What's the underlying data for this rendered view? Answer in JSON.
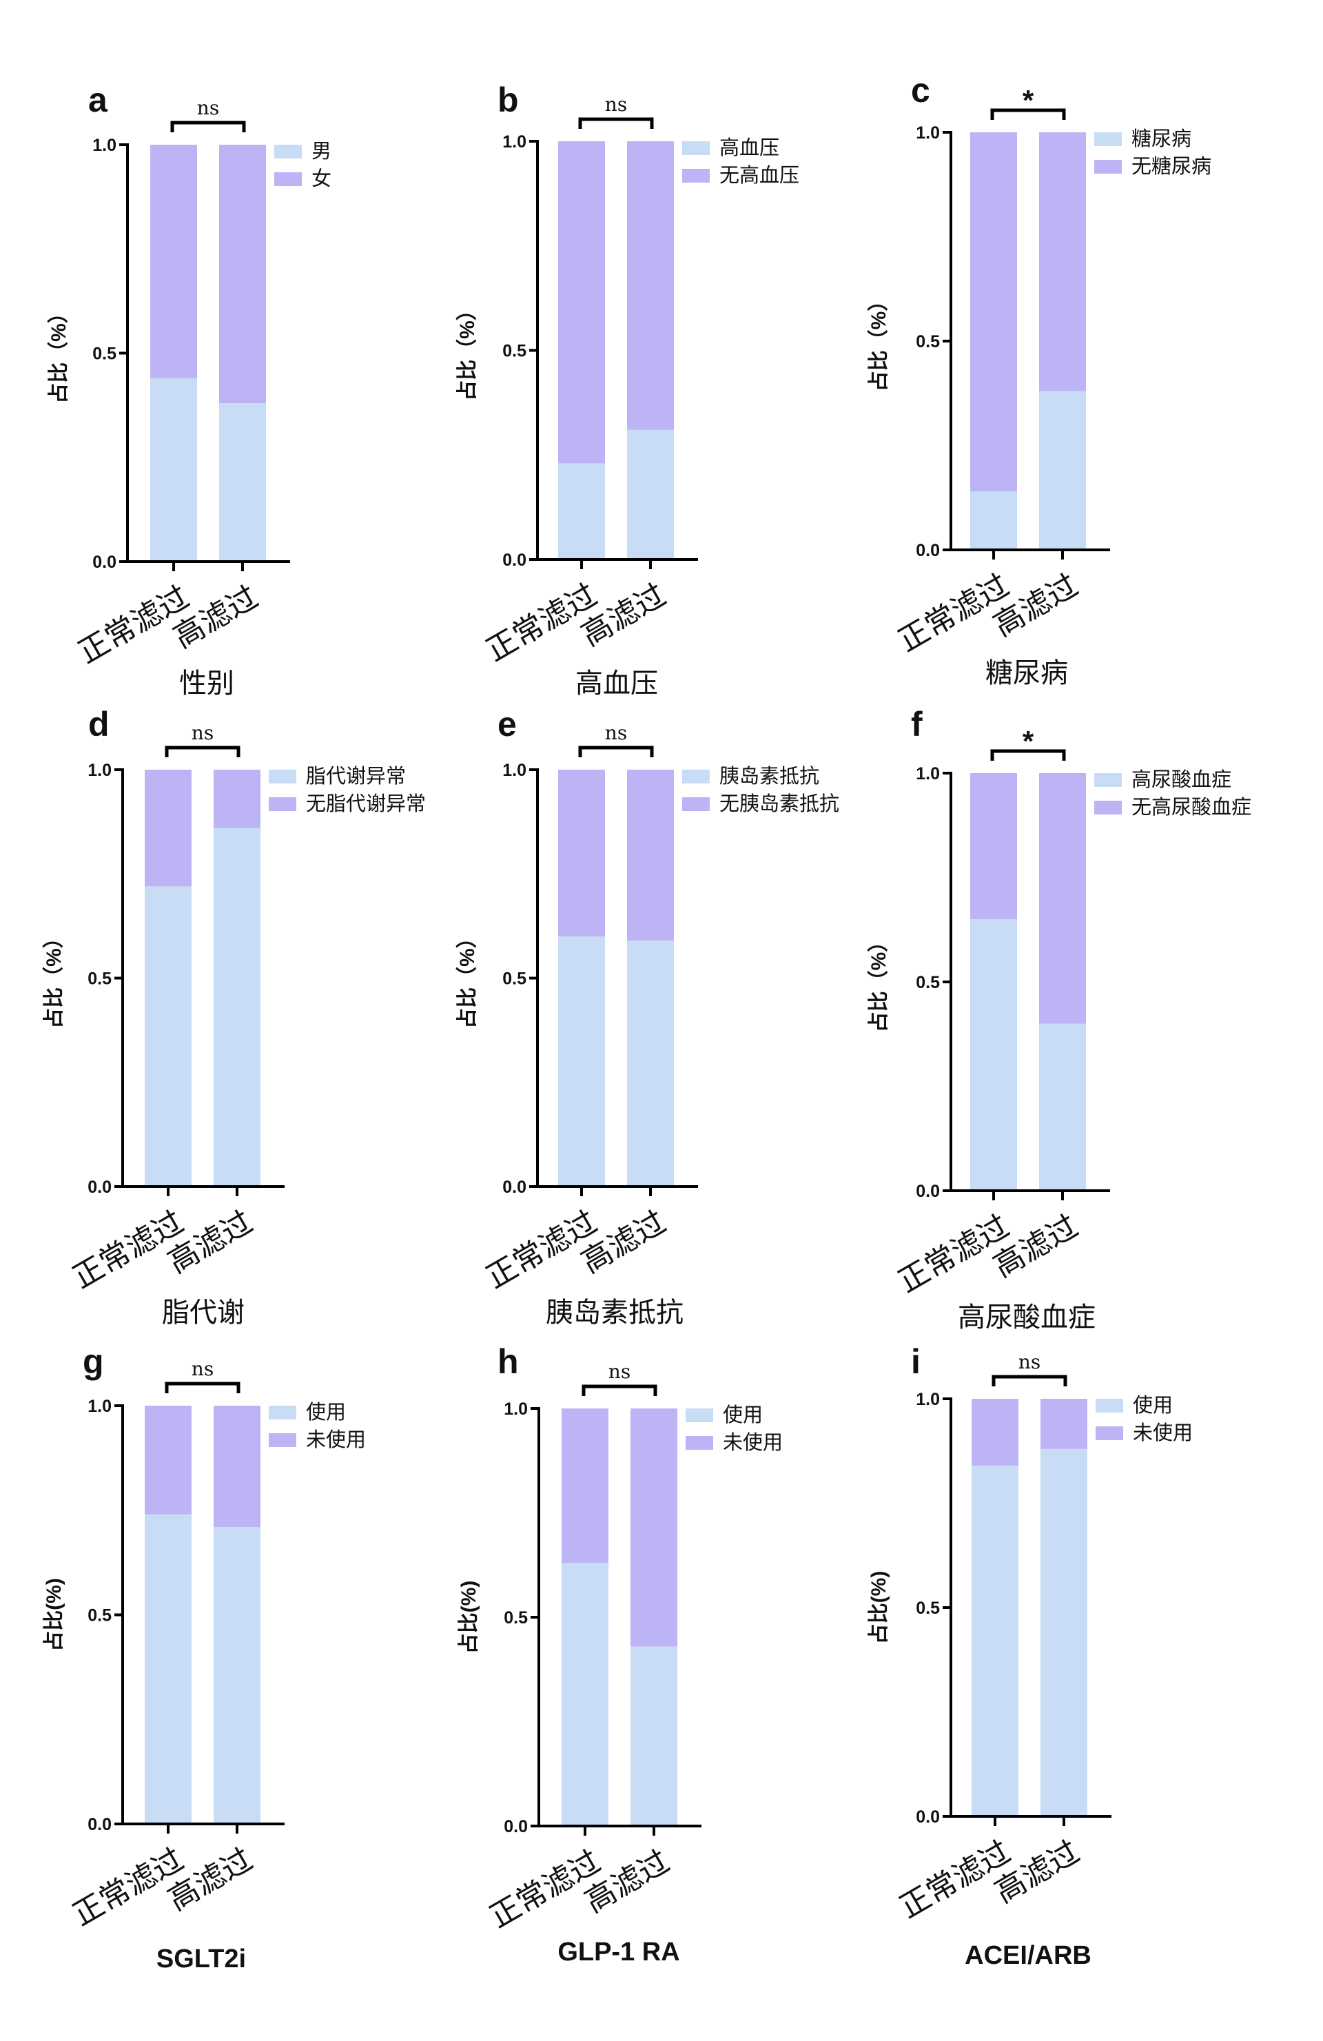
{
  "colors": {
    "segment_bottom": "#c8dcf6",
    "segment_top": "#bcb4f4",
    "axis": "#000000"
  },
  "chart_data": [
    {
      "panel": "a",
      "type": "bar",
      "stacked": true,
      "title": "性别",
      "ylabel": "占比（%）",
      "ylim": [
        0,
        1
      ],
      "yticks": [
        "0.0",
        "0.5",
        "1.0"
      ],
      "categories": [
        "正常滤过",
        "高滤过"
      ],
      "series": [
        {
          "name": "男",
          "values": [
            0.44,
            0.38
          ]
        },
        {
          "name": "女",
          "values": [
            0.56,
            0.62
          ]
        }
      ],
      "significance": "ns",
      "legend": "right-top",
      "grid": false
    },
    {
      "panel": "b",
      "type": "bar",
      "stacked": true,
      "title": "高血压",
      "ylabel": "占比（%）",
      "ylim": [
        0,
        1
      ],
      "yticks": [
        "0.0",
        "0.5",
        "1.0"
      ],
      "categories": [
        "正常滤过",
        "高滤过"
      ],
      "series": [
        {
          "name": "高血压",
          "values": [
            0.23,
            0.31
          ]
        },
        {
          "name": "无高血压",
          "values": [
            0.77,
            0.69
          ]
        }
      ],
      "significance": "ns",
      "legend": "right-top",
      "grid": false
    },
    {
      "panel": "c",
      "type": "bar",
      "stacked": true,
      "title": "糖尿病",
      "ylabel": "占比（%）",
      "ylim": [
        0,
        1
      ],
      "yticks": [
        "0.0",
        "0.5",
        "1.0"
      ],
      "categories": [
        "正常滤过",
        "高滤过"
      ],
      "series": [
        {
          "name": "糖尿病",
          "values": [
            0.14,
            0.38
          ]
        },
        {
          "name": "无糖尿病",
          "values": [
            0.86,
            0.62
          ]
        }
      ],
      "significance": "*",
      "legend": "right-top",
      "grid": false
    },
    {
      "panel": "d",
      "type": "bar",
      "stacked": true,
      "title": "脂代谢",
      "ylabel": "占比（%）",
      "ylim": [
        0,
        1
      ],
      "yticks": [
        "0.0",
        "0.5",
        "1.0"
      ],
      "categories": [
        "正常滤过",
        "高滤过"
      ],
      "series": [
        {
          "name": "脂代谢异常",
          "values": [
            0.72,
            0.86
          ]
        },
        {
          "name": "无脂代谢异常",
          "values": [
            0.28,
            0.14
          ]
        }
      ],
      "significance": "ns",
      "legend": "right-top",
      "grid": false
    },
    {
      "panel": "e",
      "type": "bar",
      "stacked": true,
      "title": "胰岛素抵抗",
      "ylabel": "占比（%）",
      "ylim": [
        0,
        1
      ],
      "yticks": [
        "0.0",
        "0.5",
        "1.0"
      ],
      "categories": [
        "正常滤过",
        "高滤过"
      ],
      "series": [
        {
          "name": "胰岛素抵抗",
          "values": [
            0.6,
            0.59
          ]
        },
        {
          "name": "无胰岛素抵抗",
          "values": [
            0.4,
            0.41
          ]
        }
      ],
      "significance": "ns",
      "legend": "right-top",
      "grid": false
    },
    {
      "panel": "f",
      "type": "bar",
      "stacked": true,
      "title": "高尿酸血症",
      "ylabel": "占比（%）",
      "ylim": [
        0,
        1
      ],
      "yticks": [
        "0.0",
        "0.5",
        "1.0"
      ],
      "categories": [
        "正常滤过",
        "高滤过"
      ],
      "series": [
        {
          "name": "高尿酸血症",
          "values": [
            0.65,
            0.4
          ]
        },
        {
          "name": "无高尿酸血症",
          "values": [
            0.35,
            0.6
          ]
        }
      ],
      "significance": "*",
      "legend": "right-top",
      "grid": false
    },
    {
      "panel": "g",
      "type": "bar",
      "stacked": true,
      "title": "SGLT2i",
      "ylabel": "占比(%)",
      "ylim": [
        0,
        1
      ],
      "yticks": [
        "0.0",
        "0.5",
        "1.0"
      ],
      "categories": [
        "正常滤过",
        "高滤过"
      ],
      "series": [
        {
          "name": "使用",
          "values": [
            0.74,
            0.71
          ]
        },
        {
          "name": "未使用",
          "values": [
            0.26,
            0.29
          ]
        }
      ],
      "significance": "ns",
      "legend": "right-top",
      "grid": false
    },
    {
      "panel": "h",
      "type": "bar",
      "stacked": true,
      "title": "GLP-1 RA",
      "ylabel": "占比(%)",
      "ylim": [
        0,
        1
      ],
      "yticks": [
        "0.0",
        "0.5",
        "1.0"
      ],
      "categories": [
        "正常滤过",
        "高滤过"
      ],
      "series": [
        {
          "name": "使用",
          "values": [
            0.63,
            0.43
          ]
        },
        {
          "name": "未使用",
          "values": [
            0.37,
            0.57
          ]
        }
      ],
      "significance": "ns",
      "legend": "right-top",
      "grid": false
    },
    {
      "panel": "i",
      "type": "bar",
      "stacked": true,
      "title": "ACEI/ARB",
      "ylabel": "占比(%)",
      "ylim": [
        0,
        1
      ],
      "yticks": [
        "0.0",
        "0.5",
        "1.0"
      ],
      "categories": [
        "正常滤过",
        "高滤过"
      ],
      "series": [
        {
          "name": "使用",
          "values": [
            0.84,
            0.88
          ]
        },
        {
          "name": "未使用",
          "values": [
            0.16,
            0.12
          ]
        }
      ],
      "significance": "ns",
      "legend": "right-top",
      "grid": false
    }
  ]
}
